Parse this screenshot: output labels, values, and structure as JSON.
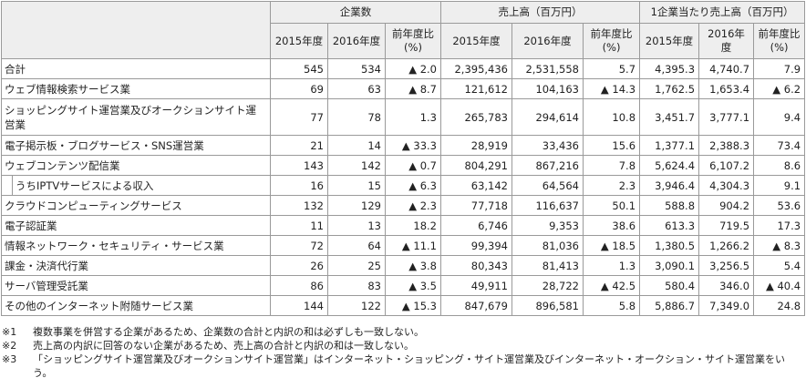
{
  "table": {
    "group_headers": [
      "企業数",
      "売上高（百万円）",
      "1企業当たり売上高（百万円）"
    ],
    "sub_headers": [
      "2015年度",
      "2016年度",
      "前年度比(%)",
      "2015年度",
      "2016年度",
      "前年度比(%)",
      "2015年度",
      "2016年度",
      "前年度比(%)"
    ],
    "rows": [
      {
        "label": "合計",
        "c": [
          "545",
          "534",
          "▲ 2.0",
          "2,395,436",
          "2,531,558",
          "5.7",
          "4,395.3",
          "4,740.7",
          "7.9"
        ]
      },
      {
        "label": "ウェブ情報検索サービス業",
        "c": [
          "69",
          "63",
          "▲ 8.7",
          "121,612",
          "104,163",
          "▲ 14.3",
          "1,762.5",
          "1,653.4",
          "▲ 6.2"
        ]
      },
      {
        "label": "ショッピングサイト運営業及びオークションサイト運営業",
        "c": [
          "77",
          "78",
          "1.3",
          "265,783",
          "294,614",
          "10.8",
          "3,451.7",
          "3,777.1",
          "9.4"
        ]
      },
      {
        "label": "電子掲示板・ブログサービス・SNS運営業",
        "c": [
          "21",
          "14",
          "▲ 33.3",
          "28,919",
          "33,436",
          "15.6",
          "1,377.1",
          "2,388.3",
          "73.4"
        ]
      },
      {
        "label": "ウェブコンテンツ配信業",
        "c": [
          "143",
          "142",
          "▲ 0.7",
          "804,291",
          "867,216",
          "7.8",
          "5,624.4",
          "6,107.2",
          "8.6"
        ]
      },
      {
        "label": "うちIPTVサービスによる収入",
        "c": [
          "16",
          "15",
          "▲ 6.3",
          "63,142",
          "64,564",
          "2.3",
          "3,946.4",
          "4,304.3",
          "9.1"
        ]
      },
      {
        "label": "クラウドコンピューティングサービス",
        "c": [
          "132",
          "129",
          "▲ 2.3",
          "77,718",
          "116,637",
          "50.1",
          "588.8",
          "904.2",
          "53.6"
        ]
      },
      {
        "label": "電子認証業",
        "c": [
          "11",
          "13",
          "18.2",
          "6,746",
          "9,353",
          "38.6",
          "613.3",
          "719.5",
          "17.3"
        ]
      },
      {
        "label": "情報ネットワーク・セキュリティ・サービス業",
        "c": [
          "72",
          "64",
          "▲ 11.1",
          "99,394",
          "81,036",
          "▲ 18.5",
          "1,380.5",
          "1,266.2",
          "▲ 8.3"
        ]
      },
      {
        "label": "課金・決済代行業",
        "c": [
          "26",
          "25",
          "▲ 3.8",
          "80,343",
          "81,413",
          "1.3",
          "3,090.1",
          "3,256.5",
          "5.4"
        ]
      },
      {
        "label": "サーバ管理受託業",
        "c": [
          "86",
          "83",
          "▲ 3.5",
          "49,911",
          "28,722",
          "▲ 42.5",
          "580.4",
          "346.0",
          "▲ 40.4"
        ]
      },
      {
        "label": "その他のインターネット附随サービス業",
        "c": [
          "144",
          "122",
          "▲ 15.3",
          "847,679",
          "896,581",
          "5.8",
          "5,886.7",
          "7,349.0",
          "24.8"
        ]
      }
    ]
  },
  "notes": [
    {
      "mark": "※1",
      "text": "複数事業を併営する企業があるため、企業数の合計と内訳の和は必ずしも一致しない。"
    },
    {
      "mark": "※2",
      "text": "売上高の内訳に回答のない企業があるため、売上高の合計と内訳の和は一致しない。"
    },
    {
      "mark": "※3",
      "text": "「ショッピングサイト運営業及びオークションサイト運営業」はインターネット・ショッピング・サイト運営業及びインターネット・オークション・サイト運営業をいう。"
    }
  ]
}
